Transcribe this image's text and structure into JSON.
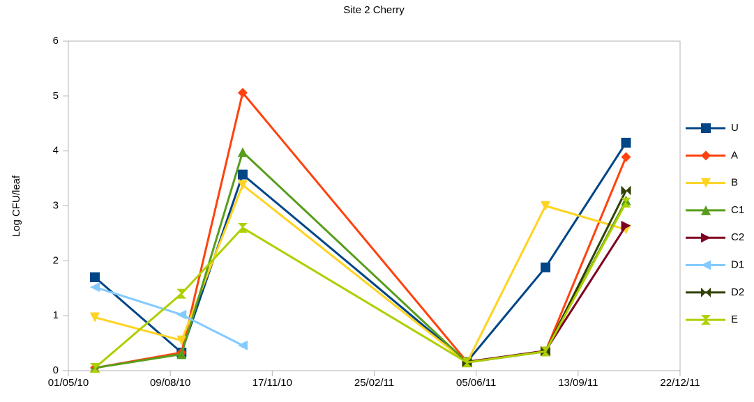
{
  "chart_data": {
    "type": "line",
    "title": "Site 2 Cherry",
    "y_label": "Log CFU/leaf",
    "x": [
      "27/05/10",
      "20/08/10",
      "19/10/10",
      "27/05/11",
      "12/08/11",
      "30/10/11"
    ],
    "xlim": [
      "01/05/10",
      "22/12/11"
    ],
    "xticks": [
      "01/05/10",
      "09/08/10",
      "17/11/10",
      "25/02/11",
      "05/06/11",
      "13/09/11",
      "22/12/11"
    ],
    "ylim": [
      0,
      6
    ],
    "yticks": [
      0,
      1,
      2,
      3,
      4,
      5,
      6
    ],
    "grid": false,
    "legend": "right",
    "series": [
      {
        "name": "U",
        "color": "#004586",
        "marker": "square",
        "values": [
          1.7,
          0.33,
          3.57,
          0.16,
          1.88,
          4.15
        ]
      },
      {
        "name": "A",
        "color": "#ff420e",
        "marker": "diamond",
        "values": [
          0.05,
          0.33,
          5.06,
          0.16,
          0.35,
          3.89
        ]
      },
      {
        "name": "B",
        "color": "#ffd320",
        "marker": "triangle-down",
        "values": [
          0.97,
          0.55,
          3.38,
          0.15,
          3.0,
          2.57
        ]
      },
      {
        "name": "C1",
        "color": "#579d1c",
        "marker": "triangle-up",
        "values": [
          0.05,
          0.3,
          3.98,
          0.15,
          0.35,
          3.1
        ]
      },
      {
        "name": "C2",
        "color": "#7e0021",
        "marker": "triangle-right",
        "values": [
          null,
          null,
          null,
          0.16,
          0.36,
          2.64
        ]
      },
      {
        "name": "D1",
        "color": "#83caff",
        "marker": "triangle-left",
        "values": [
          1.52,
          1.02,
          0.46,
          null,
          null,
          null
        ]
      },
      {
        "name": "D2",
        "color": "#314004",
        "marker": "bowtie",
        "values": [
          null,
          null,
          null,
          0.15,
          0.35,
          3.28
        ]
      },
      {
        "name": "E",
        "color": "#aecf00",
        "marker": "hourglass",
        "values": [
          0.05,
          1.4,
          2.6,
          0.15,
          0.35,
          3.06
        ]
      }
    ]
  }
}
